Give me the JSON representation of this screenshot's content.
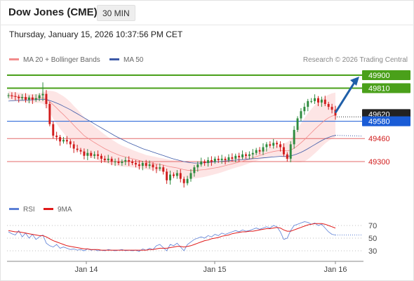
{
  "header": {
    "title": "Dow Jones (CME)",
    "timeframe": "30 MIN",
    "datetime": "Thursday, January 15, 2026 10:37:56 PM CET"
  },
  "legend": {
    "bb_label": "MA 20 + Bollinger Bands",
    "ma50_label": "MA 50",
    "credit": "Research © 2026 Trading Central",
    "rsi_label": "RSI",
    "ma9_label": "9MA"
  },
  "colors": {
    "up": "#2e8b3e",
    "down": "#d11c1c",
    "bb": "#f28b8b",
    "bb_fill": "#fde2e2",
    "ma50": "#3d5aa8",
    "green_level": "#4aa01a",
    "blue_level": "#1a5cd6",
    "red_level": "#e46a6a",
    "arrow": "#1f5fa8",
    "rsi": "#5b7fd6",
    "rsi_ma": "#e01a1a"
  },
  "chart_data": [
    {
      "type": "candlestick",
      "x_labels": [
        "Jan 14",
        "Jan 15",
        "Jan 16"
      ],
      "ylim": [
        49000,
        50000
      ],
      "levels": [
        {
          "value": 49900,
          "label": "49900",
          "kind": "resistance",
          "style": "green"
        },
        {
          "value": 49810,
          "label": "49810",
          "kind": "resistance",
          "style": "green"
        },
        {
          "value": 49620,
          "label": "49620",
          "kind": "last",
          "style": "dark"
        },
        {
          "value": 49580,
          "label": "49580",
          "kind": "pivot",
          "style": "blue"
        },
        {
          "value": 49460,
          "label": "49460",
          "kind": "support",
          "style": "red"
        },
        {
          "value": 49300,
          "label": "49300",
          "kind": "support",
          "style": "red"
        }
      ],
      "forecast": {
        "from": 49620,
        "to": 49900
      },
      "closes": [
        49760,
        49755,
        49750,
        49740,
        49748,
        49730,
        49745,
        49730,
        49740,
        49760,
        49770,
        49700,
        49560,
        49480,
        49470,
        49440,
        49450,
        49440,
        49420,
        49390,
        49380,
        49370,
        49340,
        49360,
        49340,
        49350,
        49340,
        49320,
        49310,
        49320,
        49300,
        49300,
        49290,
        49300,
        49310,
        49300,
        49290,
        49280,
        49270,
        49290,
        49270,
        49280,
        49260,
        49250,
        49260,
        49230,
        49170,
        49210,
        49200,
        49220,
        49180,
        49150,
        49180,
        49220,
        49260,
        49280,
        49300,
        49290,
        49310,
        49300,
        49320,
        49310,
        49320,
        49310,
        49330,
        49320,
        49340,
        49330,
        49350,
        49340,
        49350,
        49360,
        49380,
        49370,
        49400,
        49420,
        49410,
        49430,
        49420,
        49400,
        49350,
        49320,
        49420,
        49520,
        49600,
        49650,
        49680,
        49720,
        49720,
        49740,
        49710,
        49730,
        49700,
        49680,
        49660,
        49620
      ],
      "ma20": [
        49760,
        49755,
        49752,
        49748,
        49746,
        49742,
        49740,
        49738,
        49738,
        49740,
        49742,
        49736,
        49716,
        49694,
        49672,
        49648,
        49626,
        49602,
        49578,
        49552,
        49528,
        49504,
        49480,
        49464,
        49448,
        49432,
        49418,
        49404,
        49390,
        49378,
        49366,
        49356,
        49346,
        49338,
        49332,
        49326,
        49320,
        49314,
        49308,
        49302,
        49296,
        49292,
        49288,
        49284,
        49280,
        49276,
        49270,
        49264,
        49260,
        49256,
        49250,
        49244,
        49240,
        49238,
        49238,
        49240,
        49242,
        49244,
        49248,
        49252,
        49256,
        49260,
        49266,
        49272,
        49278,
        49284,
        49290,
        49296,
        49302,
        49310,
        49318,
        49326,
        49334,
        49342,
        49350,
        49358,
        49364,
        49370,
        49374,
        49376,
        49376,
        49374,
        49380,
        49392,
        49410,
        49430,
        49452,
        49476,
        49500,
        49524,
        49546,
        49568,
        49588,
        49604,
        49616,
        49624
      ],
      "ma50": [
        49720,
        49722,
        49724,
        49725,
        49726,
        49727,
        49728,
        49729,
        49730,
        49731,
        49732,
        49730,
        49724,
        49716,
        49706,
        49696,
        49684,
        49672,
        49660,
        49646,
        49632,
        49618,
        49604,
        49590,
        49576,
        49562,
        49548,
        49534,
        49520,
        49506,
        49492,
        49478,
        49466,
        49454,
        49442,
        49430,
        49420,
        49410,
        49400,
        49390,
        49382,
        49374,
        49366,
        49358,
        49350,
        49342,
        49334,
        49326,
        49318,
        49312,
        49306,
        49300,
        49296,
        49292,
        49290,
        49290,
        49290,
        49292,
        49294,
        49296,
        49298,
        49300,
        49302,
        49304,
        49306,
        49308,
        49310,
        49312,
        49314,
        49316,
        49318,
        49320,
        49322,
        49324,
        49326,
        49328,
        49330,
        49332,
        49334,
        49336,
        49336,
        49336,
        49340,
        49346,
        49354,
        49364,
        49376,
        49390,
        49404,
        49418,
        49432,
        49446,
        49458,
        49468,
        49476,
        49482
      ],
      "bb_width": [
        60,
        60,
        60,
        60,
        60,
        60,
        60,
        60,
        62,
        64,
        80,
        110,
        150,
        190,
        220,
        240,
        255,
        265,
        270,
        270,
        268,
        262,
        255,
        245,
        235,
        225,
        215,
        205,
        195,
        185,
        175,
        165,
        155,
        145,
        138,
        130,
        122,
        115,
        110,
        105,
        100,
        98,
        96,
        94,
        92,
        92,
        94,
        96,
        100,
        104,
        108,
        110,
        112,
        112,
        110,
        108,
        104,
        100,
        96,
        92,
        88,
        84,
        80,
        76,
        72,
        68,
        66,
        64,
        62,
        60,
        58,
        58,
        58,
        58,
        60,
        62,
        66,
        70,
        76,
        86,
        100,
        120,
        150,
        190,
        230,
        270,
        300,
        320,
        330,
        335,
        335,
        330,
        325,
        320,
        315,
        310
      ]
    },
    {
      "type": "line",
      "title": "RSI",
      "yticks": [
        30,
        50,
        70
      ],
      "ylim": [
        20,
        80
      ],
      "series": [
        {
          "name": "RSI",
          "values": [
            60,
            57,
            55,
            62,
            52,
            58,
            50,
            56,
            48,
            52,
            55,
            42,
            38,
            36,
            40,
            34,
            36,
            34,
            32,
            33,
            31,
            32,
            30,
            33,
            31,
            32,
            30,
            31,
            30,
            32,
            31,
            30,
            31,
            32,
            30,
            31,
            30,
            31,
            29,
            33,
            31,
            34,
            32,
            38,
            40,
            35,
            30,
            40,
            38,
            42,
            36,
            30,
            40,
            44,
            48,
            50,
            52,
            50,
            54,
            52,
            56,
            54,
            58,
            56,
            58,
            60,
            62,
            60,
            63,
            61,
            62,
            64,
            66,
            64,
            66,
            68,
            66,
            70,
            68,
            60,
            48,
            50,
            62,
            70,
            72,
            74,
            76,
            75,
            72,
            74,
            70,
            72,
            66,
            60,
            56,
            55
          ]
        },
        {
          "name": "9MA",
          "values": [
            62,
            61,
            60,
            60,
            59,
            58,
            57,
            56,
            55,
            54,
            54,
            52,
            49,
            46,
            44,
            42,
            40,
            38,
            37,
            36,
            35,
            34,
            33,
            33,
            32,
            32,
            32,
            31,
            31,
            31,
            31,
            31,
            31,
            31,
            31,
            31,
            31,
            31,
            31,
            31,
            31,
            32,
            32,
            33,
            34,
            34,
            34,
            35,
            36,
            37,
            37,
            36,
            37,
            38,
            40,
            42,
            44,
            46,
            47,
            49,
            50,
            51,
            53,
            54,
            55,
            57,
            58,
            59,
            60,
            60,
            61,
            61,
            62,
            63,
            64,
            65,
            65,
            66,
            67,
            66,
            63,
            61,
            61,
            63,
            65,
            67,
            69,
            71,
            72,
            73,
            73,
            73,
            72,
            70,
            68,
            66
          ]
        }
      ]
    }
  ]
}
